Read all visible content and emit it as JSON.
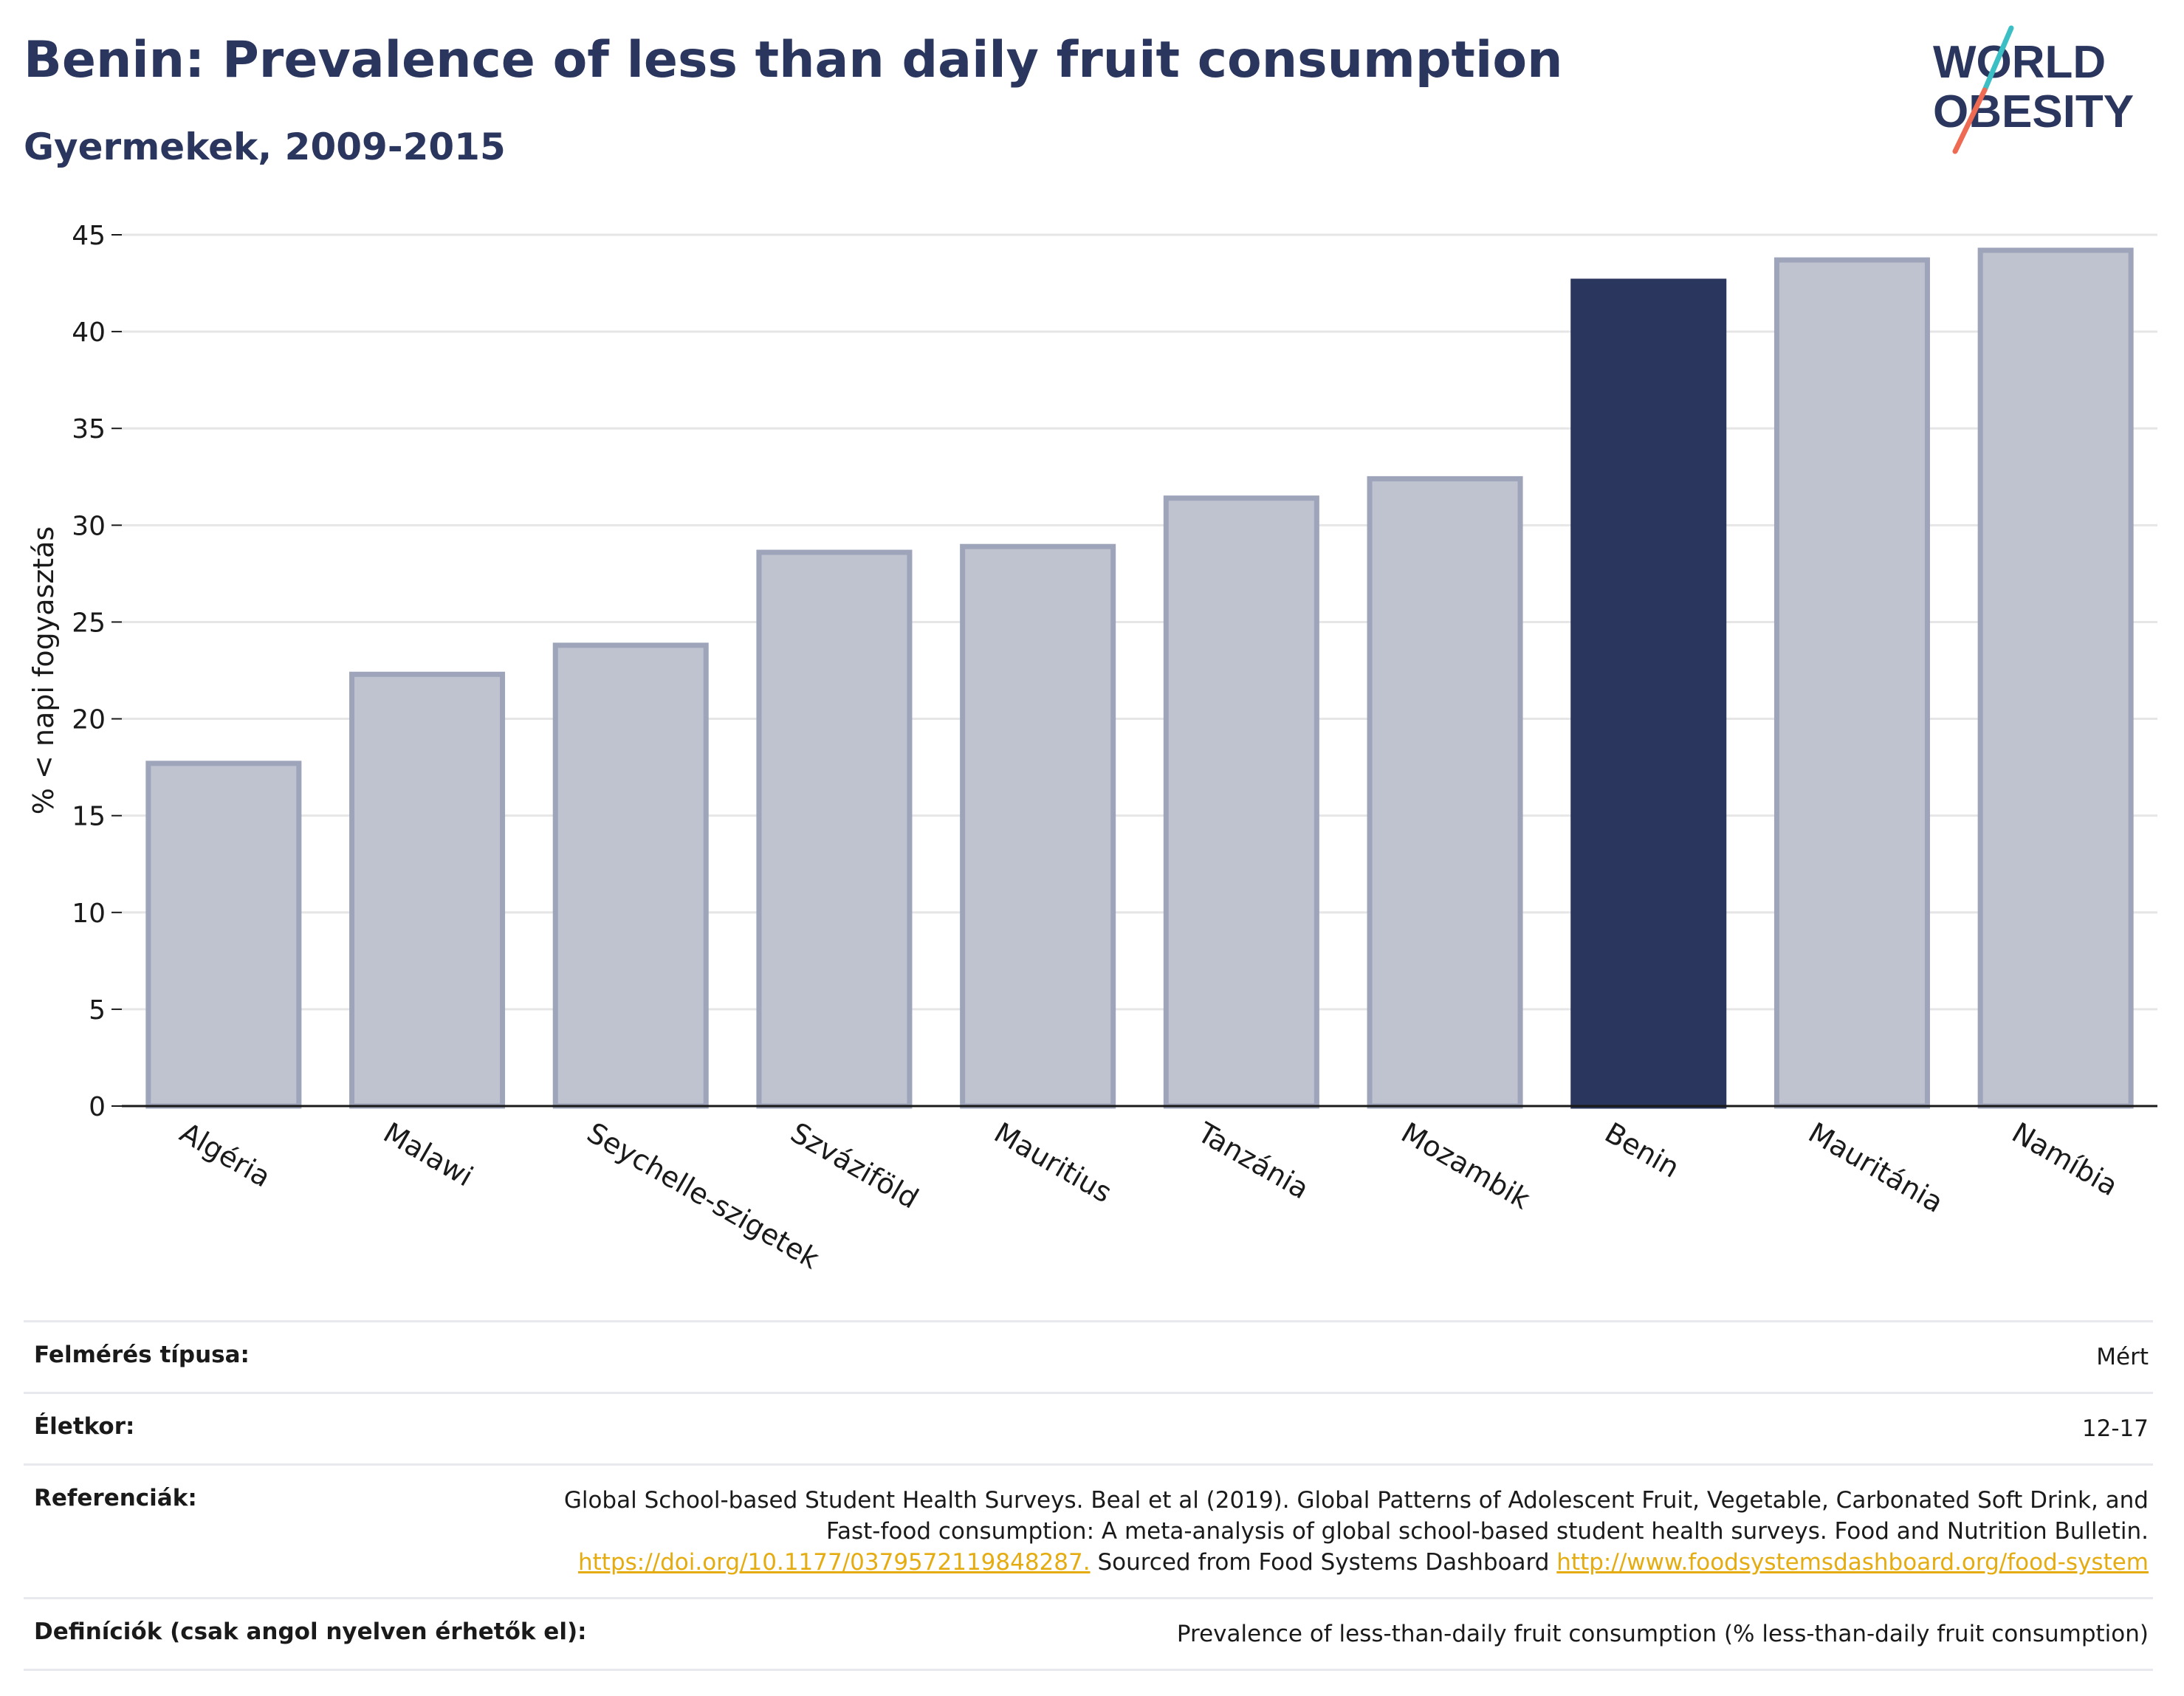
{
  "header": {
    "title": "Benin: Prevalence of less than daily fruit consumption",
    "subtitle": "Gyermekek, 2009-2015"
  },
  "logo": {
    "line1": "WORLD",
    "line2": "OBESITY",
    "colors": {
      "text": "#2a365e",
      "slash_top": "#3bbfc4",
      "slash_bottom": "#ee6a52"
    }
  },
  "colors": {
    "highlight": "#2a365e",
    "bar_fill": "#bfc2cf",
    "bar_stroke": "#9ea4ba",
    "grid": "#e6e6e6",
    "axis": "#1a1a1a",
    "link": "#e5ac12"
  },
  "chart_data": {
    "type": "bar",
    "categories": [
      "Algéria",
      "Malawi",
      "Seychelle-szigetek",
      "Szváziföld",
      "Mauritius",
      "Tanzánia",
      "Mozambik",
      "Benin",
      "Mauritánia",
      "Namíbia"
    ],
    "values": [
      17.7,
      22.3,
      23.8,
      28.6,
      28.9,
      31.4,
      32.4,
      42.6,
      43.7,
      44.2
    ],
    "highlight": "Benin",
    "title": "",
    "xlabel": "",
    "ylabel": "% < napi fogyasztás",
    "ylim": [
      0,
      45
    ],
    "yticks": [
      0,
      5,
      10,
      15,
      20,
      25,
      30,
      35,
      40,
      45
    ],
    "grid": true,
    "legend": "none"
  },
  "info": {
    "rows": [
      {
        "label": "Felmérés típusa:",
        "value": "Mért"
      },
      {
        "label": "Életkor:",
        "value": "12-17"
      }
    ],
    "references": {
      "label": "Referenciák:",
      "text1": "Global School-based Student Health Surveys. Beal et al (2019). Global Patterns of Adolescent Fruit, Vegetable, Carbonated Soft Drink, and Fast-food consumption: A meta-analysis of global school-based student health surveys. Food and Nutrition Bulletin.",
      "link1": "https://doi.org/10.1177/0379572119848287.",
      "text2": "Sourced from Food Systems Dashboard",
      "link2": "http://www.foodsystemsdashboard.org/food-system"
    },
    "definitions": {
      "label": "Definíciók (csak angol nyelven érhetők el):",
      "value": "Prevalence of less-than-daily fruit consumption (% less-than-daily fruit consumption)"
    }
  }
}
